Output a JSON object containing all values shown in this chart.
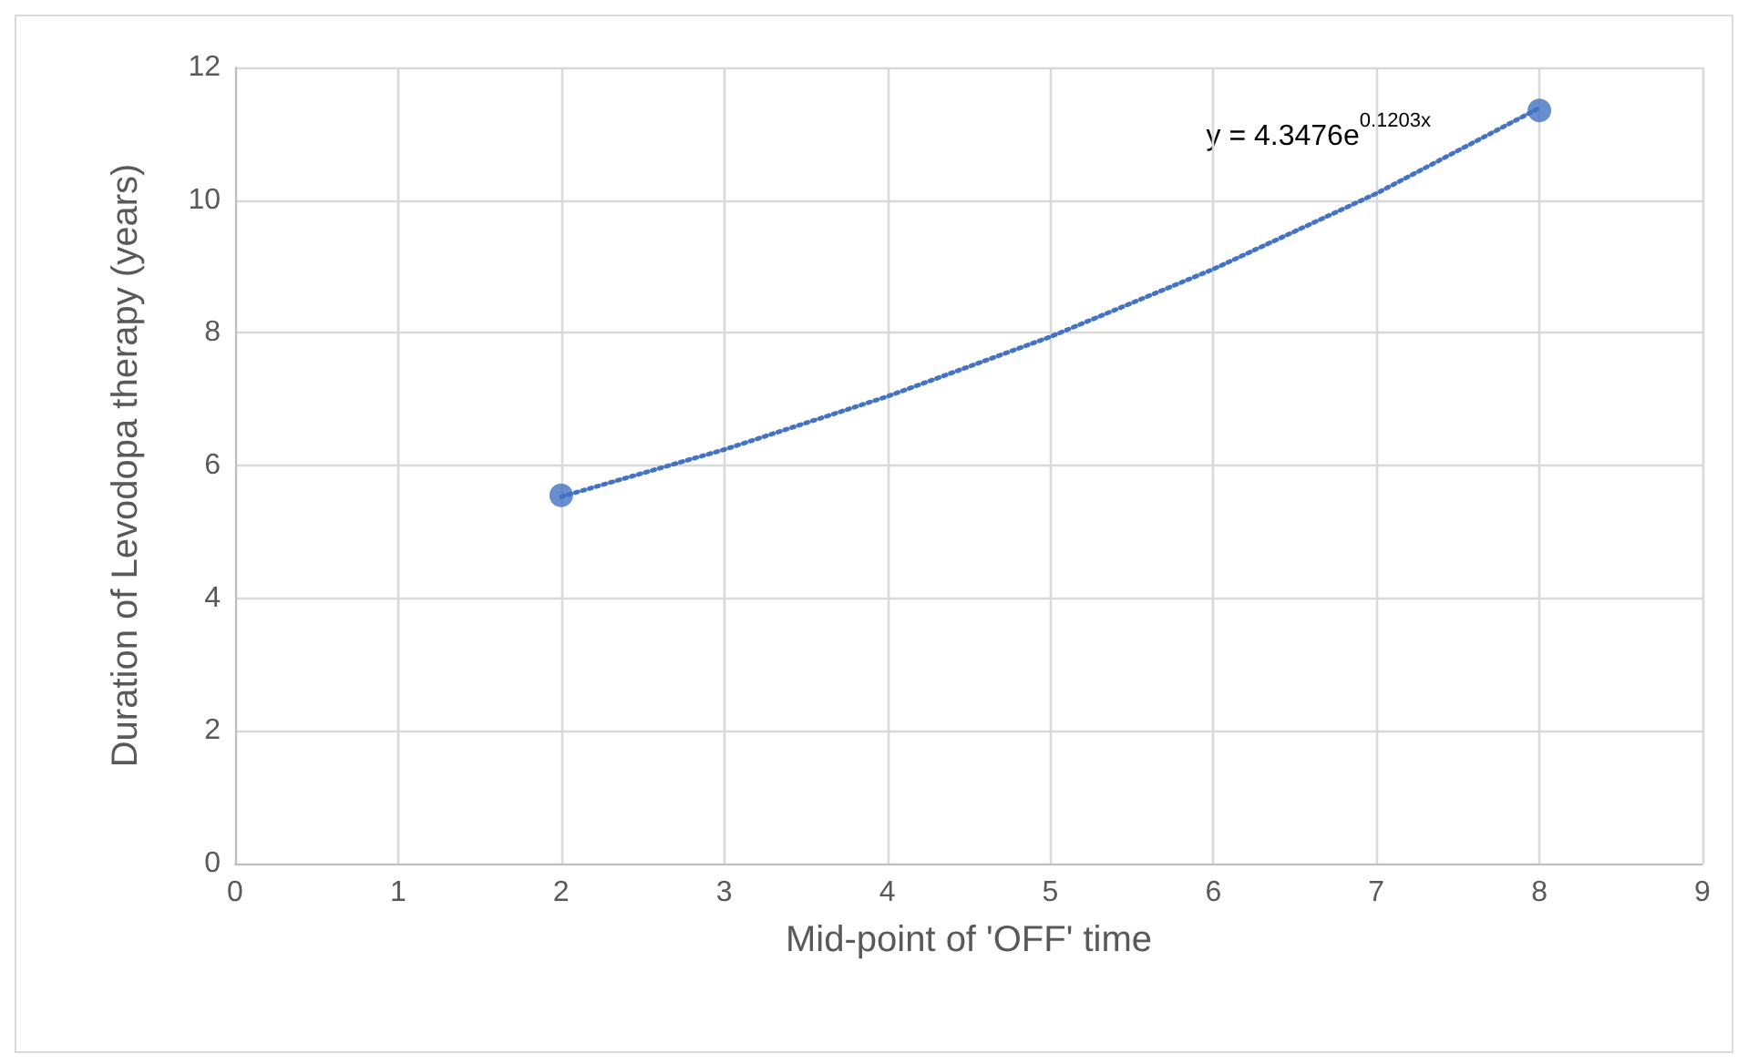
{
  "chart_data": {
    "type": "scatter",
    "xlabel": "Mid-point of 'OFF' time",
    "ylabel": "Duration of Levodopa therapy (years)",
    "annotations": [
      "y = 4.3476e$^{0.1203x}$"
    ],
    "series": [
      {
        "color": "#4472c4",
        "marker": "circle",
        "x": [
          2,
          8
        ],
        "values": [
          5.55,
          11.35
        ]
      },
      {
        "type": "line",
        "color": "#4472c4",
        "marker": "none",
        "line_style": "dotted",
        "x": [
          2,
          3,
          4,
          5,
          6,
          7,
          8
        ],
        "values": [
          5.53,
          6.24,
          7.04,
          7.94,
          8.96,
          10.1,
          11.39
        ]
      }
    ],
    "xlim": [
      0,
      9
    ],
    "xticks": [
      0,
      1,
      2,
      3,
      4,
      5,
      6,
      7,
      8,
      9
    ],
    "ylim": [
      0,
      12
    ],
    "yticks": [
      0,
      2,
      4,
      6,
      8,
      10,
      12
    ],
    "grid": true
  }
}
